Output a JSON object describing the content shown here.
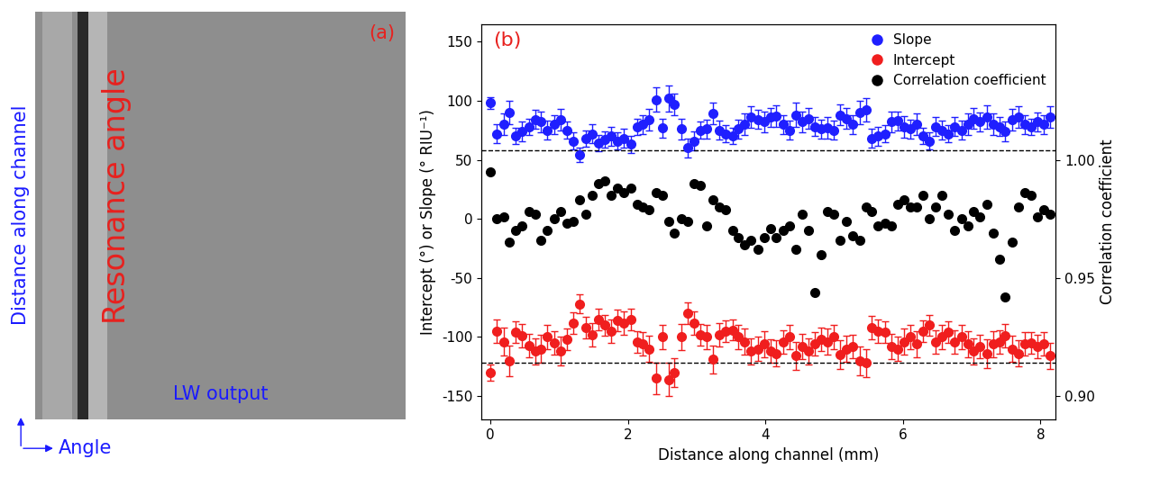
{
  "chart_data": [
    {
      "type": "image",
      "label": "(a)",
      "xlabel": "Angle",
      "ylabel": "Distance along channel",
      "annotations": [
        {
          "text": "Resonance angle",
          "color": "#e8211e"
        },
        {
          "text": "LW output",
          "color": "#1a1aff"
        }
      ]
    },
    {
      "type": "scatter",
      "label": "(b)",
      "xlabel": "Distance along channel (mm)",
      "ylabel": "Intercept (°) or Slope (° RIU⁻¹)",
      "y2label": "Correlation coefficient",
      "xlim": [
        -0.13,
        8.22
      ],
      "xticks": [
        0,
        2,
        4,
        6,
        8
      ],
      "ylim": [
        -170,
        165
      ],
      "yticks": [
        -150,
        -100,
        -50,
        0,
        50,
        100,
        150
      ],
      "y2lim": [
        0.89,
        1.0575
      ],
      "y2ticks": [
        {
          "value": 0.9,
          "label": "0.90"
        },
        {
          "value": 0.95,
          "label": "0.95"
        },
        {
          "value": 1.0,
          "label": "1.00"
        }
      ],
      "reference_lines": [
        58,
        -122
      ],
      "legend": "upper right",
      "x": [
        0,
        0.09,
        0.19,
        0.28,
        0.37,
        0.46,
        0.56,
        0.65,
        0.74,
        0.83,
        0.93,
        1.02,
        1.11,
        1.2,
        1.3,
        1.39,
        1.48,
        1.57,
        1.67,
        1.76,
        1.85,
        1.94,
        2.04,
        2.13,
        2.22,
        2.31,
        2.41,
        2.5,
        2.59,
        2.68,
        2.78,
        2.87,
        2.96,
        3.05,
        3.15,
        3.24,
        3.33,
        3.42,
        3.52,
        3.61,
        3.7,
        3.79,
        3.89,
        3.98,
        4.07,
        4.16,
        4.26,
        4.35,
        4.44,
        4.53,
        4.63,
        4.72,
        4.81,
        4.9,
        5.0,
        5.09,
        5.18,
        5.27,
        5.37,
        5.46,
        5.55,
        5.64,
        5.74,
        5.83,
        5.92,
        6.01,
        6.11,
        6.2,
        6.29,
        6.38,
        6.48,
        6.57,
        6.66,
        6.75,
        6.85,
        6.94,
        7.03,
        7.12,
        7.22,
        7.31,
        7.4,
        7.49,
        7.59,
        7.68,
        7.77,
        7.86,
        7.96,
        8.05,
        8.14
      ],
      "series": [
        {
          "name": "Slope",
          "color": "#1f1fff",
          "marker": "o",
          "values": [
            98,
            72,
            80,
            90,
            70,
            74,
            78,
            84,
            82,
            75,
            80,
            84,
            75,
            66,
            54,
            68,
            72,
            64,
            67,
            70,
            66,
            68,
            63,
            78,
            80,
            84,
            101,
            77,
            102,
            97,
            76,
            60,
            66,
            75,
            76,
            89,
            75,
            72,
            70,
            76,
            80,
            86,
            84,
            82,
            86,
            87,
            80,
            75,
            88,
            82,
            85,
            78,
            76,
            77,
            75,
            88,
            85,
            80,
            90,
            92,
            68,
            70,
            72,
            82,
            83,
            78,
            76,
            80,
            70,
            66,
            78,
            75,
            72,
            78,
            75,
            80,
            85,
            82,
            86,
            80,
            78,
            74,
            84,
            86,
            80,
            78,
            82,
            80,
            86
          ],
          "errors": [
            5,
            8,
            9,
            10,
            7,
            8,
            7,
            8,
            9,
            8,
            8,
            9,
            7,
            7,
            6,
            7,
            8,
            7,
            7,
            8,
            7,
            8,
            7,
            7,
            8,
            9,
            10,
            8,
            11,
            9,
            9,
            8,
            8,
            7,
            8,
            9,
            8,
            7,
            7,
            8,
            9,
            9,
            8,
            9,
            8,
            9,
            8,
            8,
            10,
            9,
            9,
            8,
            8,
            9,
            8,
            9,
            9,
            8,
            10,
            10,
            8,
            8,
            7,
            9,
            8,
            9,
            8,
            9,
            7,
            7,
            8,
            8,
            7,
            8,
            8,
            9,
            9,
            8,
            10,
            9,
            8,
            8,
            9,
            9,
            8,
            7,
            8,
            8,
            9
          ]
        },
        {
          "name": "Intercept",
          "color": "#f01e1e",
          "marker": "o",
          "values": [
            -130,
            -95,
            -104,
            -120,
            -96,
            -99,
            -107,
            -112,
            -110,
            -100,
            -105,
            -112,
            -102,
            -88,
            -72,
            -92,
            -98,
            -85,
            -90,
            -95,
            -86,
            -88,
            -85,
            -104,
            -106,
            -110,
            -135,
            -100,
            -136,
            -130,
            -100,
            -80,
            -88,
            -98,
            -100,
            -119,
            -98,
            -95,
            -94,
            -100,
            -104,
            -112,
            -110,
            -106,
            -112,
            -114,
            -104,
            -100,
            -116,
            -108,
            -112,
            -106,
            -102,
            -104,
            -100,
            -115,
            -110,
            -108,
            -120,
            -122,
            -92,
            -95,
            -96,
            -108,
            -110,
            -104,
            -100,
            -106,
            -95,
            -90,
            -104,
            -100,
            -96,
            -104,
            -100,
            -106,
            -112,
            -108,
            -114,
            -106,
            -104,
            -99,
            -110,
            -114,
            -106,
            -105,
            -108,
            -106,
            -116
          ],
          "errors": [
            7,
            10,
            12,
            13,
            9,
            10,
            10,
            11,
            12,
            10,
            10,
            12,
            9,
            9,
            8,
            9,
            10,
            9,
            9,
            10,
            9,
            10,
            9,
            9,
            10,
            11,
            13,
            10,
            14,
            12,
            11,
            9,
            10,
            9,
            10,
            12,
            10,
            9,
            9,
            10,
            11,
            11,
            10,
            11,
            10,
            11,
            10,
            10,
            12,
            11,
            11,
            10,
            10,
            11,
            10,
            12,
            11,
            10,
            12,
            12,
            10,
            10,
            9,
            11,
            10,
            11,
            10,
            11,
            9,
            9,
            10,
            10,
            9,
            10,
            10,
            11,
            11,
            10,
            12,
            11,
            10,
            10,
            11,
            11,
            10,
            9,
            10,
            10,
            11
          ]
        },
        {
          "name": "Correlation coefficient",
          "color": "#000000",
          "marker": "o",
          "axis": "y2",
          "values": [
            0.995,
            0.975,
            0.976,
            0.965,
            0.97,
            0.972,
            0.978,
            0.977,
            0.966,
            0.97,
            0.975,
            0.978,
            0.973,
            0.974,
            0.983,
            0.977,
            0.985,
            0.99,
            0.991,
            0.985,
            0.988,
            0.986,
            0.988,
            0.981,
            0.98,
            0.979,
            0.986,
            0.985,
            0.974,
            0.969,
            0.975,
            0.974,
            0.99,
            0.989,
            0.972,
            0.983,
            0.98,
            0.979,
            0.97,
            0.967,
            0.964,
            0.966,
            0.962,
            0.967,
            0.971,
            0.967,
            0.97,
            0.972,
            0.962,
            0.977,
            0.97,
            0.944,
            0.96,
            0.978,
            0.977,
            0.966,
            0.974,
            0.968,
            0.966,
            0.98,
            0.978,
            0.972,
            0.973,
            0.972,
            0.981,
            0.983,
            0.98,
            0.98,
            0.985,
            0.975,
            0.98,
            0.985,
            0.977,
            0.97,
            0.975,
            0.972,
            0.978,
            0.976,
            0.981,
            0.969,
            0.958,
            0.942,
            0.965,
            0.98,
            0.986,
            0.985,
            0.976,
            0.979,
            0.977
          ]
        }
      ]
    }
  ]
}
